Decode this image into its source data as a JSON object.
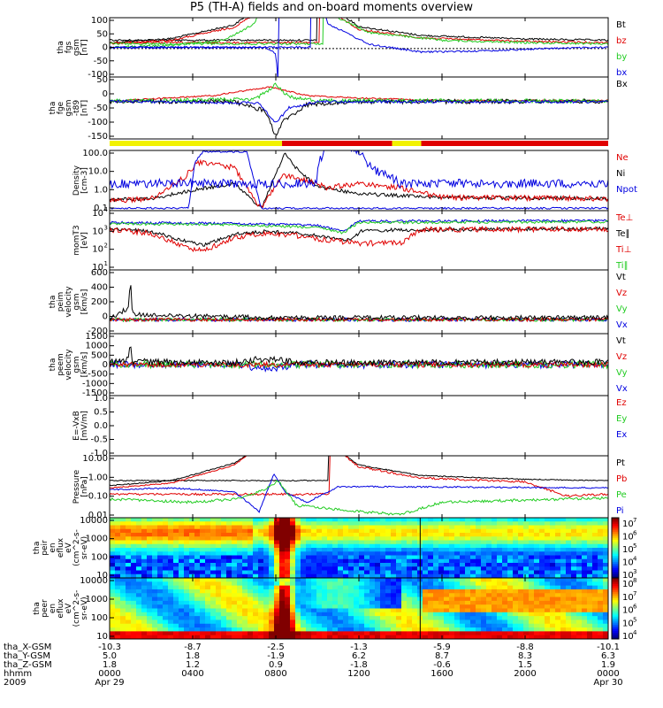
{
  "title": "P5 (TH-A) fields and on-board moments overview",
  "colors": {
    "black": "#000000",
    "red": "#e00000",
    "green": "#22cc22",
    "blue": "#0000e0",
    "yellow": "#f2f200"
  },
  "chart_data": [
    {
      "type": "line",
      "panel": "fgs",
      "ylabel": [
        "tha",
        "fgs",
        "gsm",
        "[nT]"
      ],
      "ylim": [
        -100,
        100
      ],
      "yticks": [
        "100",
        "50",
        "0",
        "-50",
        "-100"
      ],
      "legend": [
        {
          "name": "Bt",
          "color": "black"
        },
        {
          "name": "bz",
          "color": "red"
        },
        {
          "name": "by",
          "color": "green"
        },
        {
          "name": "bx",
          "color": "blue"
        }
      ]
    },
    {
      "type": "line",
      "panel": "fge",
      "ylabel": [
        "tha",
        "fge",
        "gsm",
        "-t89",
        "[nT]"
      ],
      "ylim": [
        -175,
        75
      ],
      "yticks": [
        "50",
        "0",
        "-50",
        "-100",
        "-150"
      ],
      "legend": [
        {
          "name": "Bx",
          "color": "black"
        }
      ]
    },
    {
      "type": "line",
      "panel": "density",
      "ylabel": [
        "Density",
        "[cm-3]"
      ],
      "yscale": "log",
      "ylim": [
        0.1,
        100
      ],
      "yticks": [
        "100.0",
        "10.0",
        "1.0",
        "0.1"
      ],
      "legend": [
        {
          "name": "Ne",
          "color": "red"
        },
        {
          "name": "Ni",
          "color": "black"
        },
        {
          "name": "Npot",
          "color": "blue"
        }
      ]
    },
    {
      "type": "line",
      "panel": "temperature",
      "ylabel": [
        "momT3",
        "[eV]"
      ],
      "yscale": "log",
      "ylim": [
        10,
        10000
      ],
      "yticks": [
        "10",
        "10",
        "10",
        "10"
      ],
      "ytick_exponents": [
        "4",
        "3",
        "2",
        "1"
      ],
      "legend": [
        {
          "name": "Te⊥",
          "color": "red"
        },
        {
          "name": "Te∥",
          "color": "black"
        },
        {
          "name": "Ti⊥",
          "color": "red"
        },
        {
          "name": "Ti∥",
          "color": "green"
        }
      ]
    },
    {
      "type": "line",
      "panel": "peim",
      "ylabel": [
        "tha",
        "peim",
        "velocity",
        "gsm",
        "[km/s]"
      ],
      "ylim": [
        -200,
        600
      ],
      "yticks": [
        "600",
        "400",
        "200",
        "0",
        "-200"
      ],
      "legend": [
        {
          "name": "Vt",
          "color": "black"
        },
        {
          "name": "Vz",
          "color": "red"
        },
        {
          "name": "Vy",
          "color": "green"
        },
        {
          "name": "Vx",
          "color": "blue"
        }
      ]
    },
    {
      "type": "line",
      "panel": "peem",
      "ylabel": [
        "tha",
        "peem",
        "velocity",
        "gsm",
        "[km/s]"
      ],
      "ylim": [
        -1500,
        1500
      ],
      "yticks": [
        "1500",
        "1000",
        "500",
        "0",
        "-500",
        "-1000",
        "-1500"
      ],
      "legend": [
        {
          "name": "Vt",
          "color": "black"
        },
        {
          "name": "Vz",
          "color": "red"
        },
        {
          "name": "Vy",
          "color": "green"
        },
        {
          "name": "Vx",
          "color": "blue"
        }
      ]
    },
    {
      "type": "line",
      "panel": "efield",
      "ylabel": [
        "E=-VxB",
        "[mV/m]"
      ],
      "ylim": [
        -1,
        1
      ],
      "yticks": [
        "1.0",
        "0.5",
        "0.0",
        "-0.5",
        "-1.0"
      ],
      "legend": [
        {
          "name": "Ez",
          "color": "red"
        },
        {
          "name": "Ey",
          "color": "green"
        },
        {
          "name": "Ex",
          "color": "blue"
        }
      ]
    },
    {
      "type": "line",
      "panel": "pressure",
      "ylabel": [
        "Pressure",
        "[nPa]"
      ],
      "yscale": "log",
      "ylim": [
        0.003,
        12
      ],
      "yticks": [
        "10.00",
        "1.00",
        "0.10",
        "0.01"
      ],
      "legend": [
        {
          "name": "Pt",
          "color": "black"
        },
        {
          "name": "Pb",
          "color": "red"
        },
        {
          "name": "Pe",
          "color": "green"
        },
        {
          "name": "Pi",
          "color": "blue"
        }
      ]
    },
    {
      "type": "heatmap",
      "panel": "peir",
      "ylabel": [
        "tha",
        "peir",
        "en",
        "eflux",
        "eV",
        "(cm^2-s-",
        "sr-eV)"
      ],
      "yscale": "log",
      "ylim": [
        5,
        25000
      ],
      "yticks": [
        "10000",
        "1000",
        "100",
        "10"
      ],
      "colorbar": [
        "10",
        "10",
        "10",
        "10",
        "10"
      ],
      "colorbar_exponents": [
        "7",
        "6",
        "5",
        "4",
        "3"
      ]
    },
    {
      "type": "heatmap",
      "panel": "peer",
      "ylabel": [
        "tha",
        "peer",
        "en",
        "eflux",
        "eV",
        "(cm^2-s-",
        "sr-eV)"
      ],
      "yscale": "log",
      "ylim": [
        5,
        25000
      ],
      "yticks": [
        "10000",
        "1000",
        "100",
        "10"
      ],
      "colorbar": [
        "10",
        "10",
        "10",
        "10",
        "10"
      ],
      "colorbar_exponents": [
        "8",
        "7",
        "6",
        "5",
        "4"
      ]
    }
  ],
  "xaxis": {
    "rows": [
      {
        "label": "tha_X-GSM",
        "values": [
          "-10.3",
          "-8.7",
          "-2.5",
          "-1.3",
          "-5.9",
          "-8.8",
          "-10.1"
        ]
      },
      {
        "label": "tha_Y-GSM",
        "values": [
          "5.0",
          "1.8",
          "-1.9",
          "6.2",
          "8.7",
          "8.3",
          "6.3"
        ]
      },
      {
        "label": "tha_Z-GSM",
        "values": [
          "1.8",
          "1.2",
          "0.9",
          "-1.8",
          "-0.6",
          "1.5",
          "1.9"
        ]
      },
      {
        "label": "hhmm",
        "values": [
          "0000",
          "0400",
          "0800",
          "1200",
          "1600",
          "2000",
          "0000"
        ]
      },
      {
        "label": "2009",
        "values": [
          "Apr 29",
          "",
          "",
          "",
          "",
          "",
          "Apr 30"
        ]
      }
    ],
    "time_hours": [
      0,
      4,
      8,
      12,
      16,
      20,
      24
    ]
  },
  "mode_bar": [
    {
      "start": 0,
      "end": 8.3,
      "color": "yellow"
    },
    {
      "start": 8.3,
      "end": 13.6,
      "color": "red"
    },
    {
      "start": 13.6,
      "end": 15.0,
      "color": "yellow"
    },
    {
      "start": 15.0,
      "end": 24,
      "color": "red"
    }
  ]
}
